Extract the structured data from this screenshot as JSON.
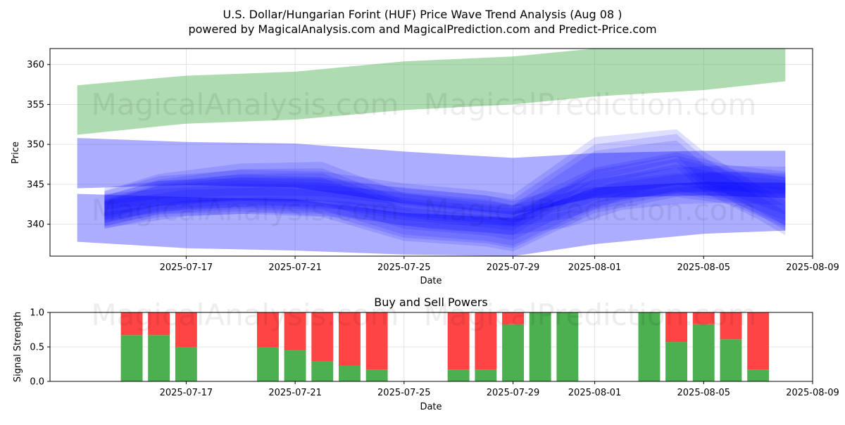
{
  "header": {
    "title": "U.S. Dollar/Hungarian Forint (HUF) Price Wave Trend Analysis (Aug 08 )",
    "subtitle": "powered by MagicalAnalysis.com and MagicalPrediction.com and Predict-Price.com"
  },
  "watermarks": [
    "MagicalAnalysis.com",
    "MagicalPrediction.com"
  ],
  "colors": {
    "upper_band": "#4caf50",
    "wave_band": "#0000ff",
    "buy": "#4caf50",
    "sell": "#ff4444",
    "grid": "#dddddd"
  },
  "chart_data": [
    {
      "type": "area",
      "title": "",
      "xlabel": "Date",
      "ylabel": "Price",
      "x_range": [
        "2025-07-12",
        "2025-08-09"
      ],
      "ylim": [
        336,
        362
      ],
      "x_ticks": [
        "2025-07-17",
        "2025-07-21",
        "2025-07-25",
        "2025-07-29",
        "2025-08-01",
        "2025-08-05",
        "2025-08-09"
      ],
      "y_ticks": [
        340,
        345,
        350,
        355,
        360
      ],
      "grid": true,
      "series": [
        {
          "name": "",
          "kind": "upper-band",
          "x": [
            "2025-07-13",
            "2025-07-17",
            "2025-07-21",
            "2025-07-25",
            "2025-07-29",
            "2025-08-01",
            "2025-08-05",
            "2025-08-08"
          ],
          "upper": [
            357.4,
            358.6,
            359.1,
            360.4,
            361.0,
            362.0,
            362.0,
            362.0
          ],
          "lower": [
            351.2,
            352.6,
            353.1,
            354.3,
            355.0,
            356.0,
            356.8,
            357.9
          ]
        },
        {
          "name": "",
          "kind": "wide-band",
          "x": [
            "2025-07-13",
            "2025-07-17",
            "2025-07-21",
            "2025-07-25",
            "2025-07-29",
            "2025-08-01",
            "2025-08-05",
            "2025-08-08"
          ],
          "upper": [
            350.8,
            350.3,
            350.1,
            349.1,
            348.3,
            348.9,
            349.2,
            349.2
          ],
          "lower": [
            344.5,
            344.9,
            344.6,
            342.6,
            341.2,
            343.3,
            343.6,
            343.3
          ]
        },
        {
          "name": "",
          "kind": "lower-band",
          "x": [
            "2025-07-13",
            "2025-07-17",
            "2025-07-21",
            "2025-07-25",
            "2025-07-29",
            "2025-08-01",
            "2025-08-05",
            "2025-08-08"
          ],
          "upper": [
            343.8,
            343.4,
            343.1,
            341.4,
            340.8,
            344.6,
            345.3,
            345.2
          ],
          "lower": [
            337.8,
            337.0,
            336.7,
            336.2,
            336.0,
            337.5,
            338.8,
            339.2
          ]
        },
        {
          "name": "",
          "kind": "wave",
          "x": [
            "2025-07-14",
            "2025-07-16",
            "2025-07-19",
            "2025-07-22",
            "2025-07-25",
            "2025-07-28",
            "2025-07-29",
            "2025-08-01",
            "2025-08-04",
            "2025-08-06",
            "2025-08-08"
          ],
          "upper": [
            343.5,
            345.6,
            346.9,
            347.0,
            343.0,
            341.8,
            341.6,
            346.3,
            348.2,
            346.6,
            346.4
          ],
          "lower": [
            340.2,
            341.6,
            342.1,
            341.8,
            338.7,
            337.9,
            337.3,
            342.2,
            344.2,
            343.1,
            340.4
          ]
        },
        {
          "name": "",
          "kind": "wave",
          "x": [
            "2025-07-14",
            "2025-07-16",
            "2025-07-19",
            "2025-07-22",
            "2025-07-25",
            "2025-07-28",
            "2025-07-29",
            "2025-08-01",
            "2025-08-04",
            "2025-08-06",
            "2025-08-08"
          ],
          "upper": [
            342.8,
            344.9,
            345.9,
            345.8,
            342.1,
            341.1,
            340.9,
            345.5,
            347.5,
            346.1,
            345.5
          ],
          "lower": [
            339.4,
            340.9,
            341.3,
            340.9,
            337.9,
            337.2,
            336.6,
            341.4,
            343.4,
            342.5,
            339.6
          ]
        },
        {
          "name": "",
          "kind": "wave",
          "x": [
            "2025-07-14",
            "2025-07-16",
            "2025-07-19",
            "2025-07-22",
            "2025-07-25",
            "2025-07-28",
            "2025-07-29",
            "2025-08-01",
            "2025-08-04",
            "2025-08-06",
            "2025-08-08"
          ],
          "upper": [
            344.2,
            346.3,
            347.6,
            347.8,
            343.9,
            342.5,
            342.3,
            347.1,
            349.0,
            347.3,
            347.2
          ],
          "lower": [
            341.0,
            342.3,
            342.9,
            342.6,
            339.4,
            338.6,
            338.0,
            343.0,
            345.0,
            343.7,
            341.2
          ]
        },
        {
          "name": "",
          "kind": "wave",
          "x": [
            "2025-07-14",
            "2025-07-16",
            "2025-07-19",
            "2025-07-22",
            "2025-07-25",
            "2025-07-28",
            "2025-07-29",
            "2025-08-01",
            "2025-08-04",
            "2025-08-06",
            "2025-08-08"
          ],
          "upper": [
            343.1,
            345.1,
            346.3,
            346.4,
            342.6,
            341.5,
            341.2,
            346.8,
            348.6,
            346.9,
            345.9
          ],
          "lower": [
            339.8,
            341.2,
            341.6,
            341.3,
            338.3,
            337.6,
            337.0,
            341.8,
            343.8,
            342.8,
            339.9
          ]
        },
        {
          "name": "",
          "kind": "wave",
          "x": [
            "2025-07-14",
            "2025-07-16",
            "2025-07-19",
            "2025-07-22",
            "2025-07-25",
            "2025-07-28",
            "2025-07-29",
            "2025-08-01",
            "2025-08-04",
            "2025-08-06",
            "2025-08-08"
          ],
          "upper": [
            343.8,
            344.4,
            345.0,
            344.9,
            344.0,
            343.1,
            342.4,
            344.8,
            346.2,
            346.5,
            345.9
          ],
          "lower": [
            341.8,
            342.6,
            343.0,
            342.9,
            341.8,
            340.9,
            340.2,
            342.7,
            344.0,
            344.3,
            343.5
          ]
        },
        {
          "name": "",
          "kind": "wave",
          "x": [
            "2025-07-14",
            "2025-07-16",
            "2025-07-19",
            "2025-07-22",
            "2025-07-25",
            "2025-07-28",
            "2025-07-29",
            "2025-08-01",
            "2025-08-04",
            "2025-08-06",
            "2025-08-08"
          ],
          "upper": [
            344.6,
            345.4,
            345.8,
            345.6,
            344.6,
            343.6,
            342.9,
            345.6,
            347.1,
            347.4,
            346.6
          ],
          "lower": [
            342.4,
            343.2,
            343.6,
            343.5,
            342.4,
            341.4,
            340.8,
            343.5,
            344.9,
            345.1,
            344.2
          ]
        },
        {
          "name": "",
          "kind": "wave",
          "x": [
            "2025-07-14",
            "2025-07-17",
            "2025-07-20",
            "2025-07-23",
            "2025-07-26",
            "2025-07-29",
            "2025-07-31",
            "2025-08-02",
            "2025-08-04",
            "2025-08-06",
            "2025-08-08"
          ],
          "upper": [
            341.5,
            343.0,
            343.4,
            342.8,
            341.4,
            340.6,
            341.6,
            343.9,
            344.6,
            344.9,
            344.6
          ],
          "lower": [
            339.5,
            341.0,
            341.4,
            340.8,
            339.4,
            338.7,
            339.6,
            341.8,
            342.5,
            342.7,
            342.4
          ]
        },
        {
          "name": "",
          "kind": "wave",
          "x": [
            "2025-07-14",
            "2025-07-17",
            "2025-07-20",
            "2025-07-23",
            "2025-07-26",
            "2025-07-29",
            "2025-07-31",
            "2025-08-02",
            "2025-08-04",
            "2025-08-06",
            "2025-08-08"
          ],
          "upper": [
            342.9,
            344.3,
            344.6,
            344.1,
            342.9,
            342.0,
            343.1,
            345.6,
            346.4,
            346.6,
            346.2
          ],
          "lower": [
            340.5,
            341.9,
            342.3,
            341.8,
            340.5,
            339.7,
            340.7,
            343.1,
            343.9,
            344.1,
            343.8
          ]
        },
        {
          "name": "",
          "kind": "wave",
          "x": [
            "2025-07-14",
            "2025-07-16",
            "2025-07-19",
            "2025-07-22",
            "2025-07-25",
            "2025-07-28",
            "2025-07-29",
            "2025-08-01",
            "2025-08-04",
            "2025-08-05",
            "2025-08-07",
            "2025-08-08"
          ],
          "upper": [
            343.0,
            344.8,
            345.5,
            345.2,
            343.8,
            342.9,
            342.4,
            349.2,
            350.5,
            347.5,
            343.6,
            341.6
          ],
          "lower": [
            339.7,
            341.3,
            341.9,
            341.5,
            339.8,
            339.0,
            338.6,
            344.8,
            347.1,
            344.0,
            340.6,
            338.6
          ]
        },
        {
          "name": "",
          "kind": "wave",
          "x": [
            "2025-07-14",
            "2025-07-16",
            "2025-07-19",
            "2025-07-22",
            "2025-07-25",
            "2025-07-28",
            "2025-07-29",
            "2025-08-01",
            "2025-08-04",
            "2025-08-05",
            "2025-08-07",
            "2025-08-08"
          ],
          "upper": [
            343.6,
            345.4,
            346.2,
            345.9,
            344.5,
            343.6,
            343.1,
            350.0,
            351.3,
            348.4,
            344.3,
            342.3
          ],
          "lower": [
            340.1,
            341.8,
            342.5,
            342.2,
            340.5,
            339.6,
            339.2,
            345.5,
            347.8,
            344.7,
            341.2,
            339.2
          ]
        },
        {
          "name": "",
          "kind": "wave",
          "x": [
            "2025-07-14",
            "2025-07-16",
            "2025-07-19",
            "2025-07-22",
            "2025-07-25",
            "2025-07-28",
            "2025-07-29",
            "2025-08-01",
            "2025-08-04",
            "2025-08-05",
            "2025-08-07",
            "2025-08-08"
          ],
          "upper": [
            344.1,
            346.0,
            346.8,
            346.6,
            345.1,
            344.2,
            343.7,
            350.9,
            351.9,
            349.1,
            344.9,
            342.9
          ],
          "lower": [
            340.6,
            342.3,
            343.1,
            342.8,
            341.1,
            340.2,
            339.8,
            346.3,
            348.5,
            345.3,
            341.7,
            339.8
          ]
        }
      ]
    },
    {
      "type": "bar",
      "title": "Buy and Sell Powers",
      "xlabel": "Date",
      "ylabel": "Signal Strength",
      "ylim": [
        0,
        1
      ],
      "y_ticks": [
        0.0,
        0.5,
        1.0
      ],
      "x_ticks": [
        "2025-07-17",
        "2025-07-21",
        "2025-07-25",
        "2025-07-29",
        "2025-08-01",
        "2025-08-05",
        "2025-08-09"
      ],
      "grid": true,
      "categories": [
        "2025-07-15",
        "2025-07-16",
        "2025-07-17",
        "2025-07-20",
        "2025-07-21",
        "2025-07-22",
        "2025-07-23",
        "2025-07-24",
        "2025-07-27",
        "2025-07-28",
        "2025-07-29",
        "2025-07-30",
        "2025-07-31",
        "2025-08-03",
        "2025-08-04",
        "2025-08-05",
        "2025-08-06",
        "2025-08-07"
      ],
      "series": [
        {
          "name": "",
          "color": "#4caf50",
          "values": [
            0.67,
            0.67,
            0.5,
            0.5,
            0.45,
            0.29,
            0.23,
            0.17,
            0.17,
            0.17,
            0.83,
            1.0,
            1.0,
            1.0,
            0.57,
            0.83,
            0.61,
            0.17
          ]
        },
        {
          "name": "",
          "color": "#ff4444",
          "values": [
            0.33,
            0.33,
            0.5,
            0.5,
            0.55,
            0.71,
            0.77,
            0.83,
            0.83,
            0.83,
            0.17,
            0.0,
            0.0,
            0.0,
            0.43,
            0.17,
            0.39,
            0.83
          ]
        }
      ]
    }
  ]
}
